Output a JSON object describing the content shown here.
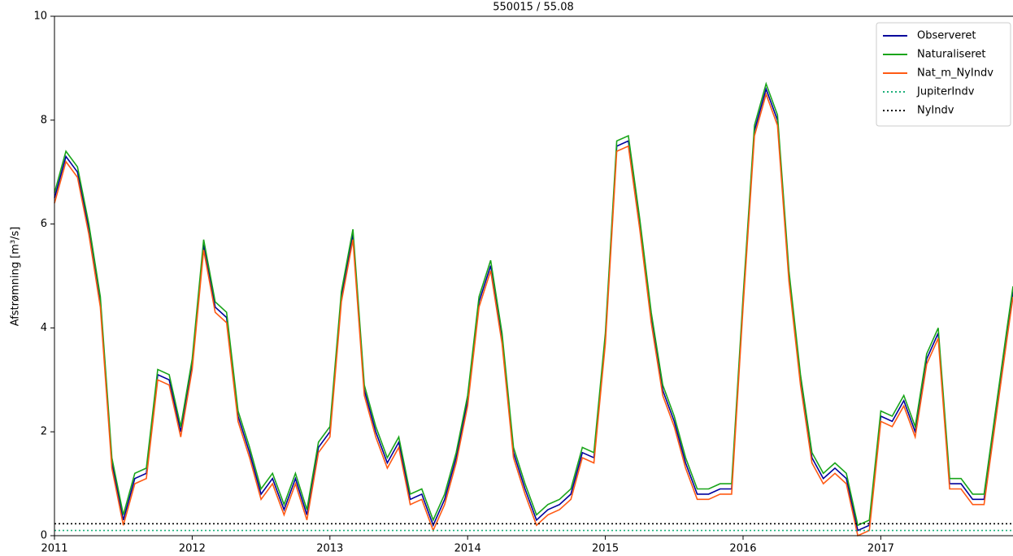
{
  "chart_data": {
    "type": "line",
    "title": "550015 / 55.08",
    "ylabel": "Afstrømning [m³/s]",
    "x": [
      2011.0,
      2011.083,
      2011.167,
      2011.25,
      2011.333,
      2011.417,
      2011.5,
      2011.583,
      2011.667,
      2011.75,
      2011.833,
      2011.917,
      2012.0,
      2012.083,
      2012.167,
      2012.25,
      2012.333,
      2012.417,
      2012.5,
      2012.583,
      2012.667,
      2012.75,
      2012.833,
      2012.917,
      2013.0,
      2013.083,
      2013.167,
      2013.25,
      2013.333,
      2013.417,
      2013.5,
      2013.583,
      2013.667,
      2013.75,
      2013.833,
      2013.917,
      2014.0,
      2014.083,
      2014.167,
      2014.25,
      2014.333,
      2014.417,
      2014.5,
      2014.583,
      2014.667,
      2014.75,
      2014.833,
      2014.917,
      2015.0,
      2015.083,
      2015.167,
      2015.25,
      2015.333,
      2015.417,
      2015.5,
      2015.583,
      2015.667,
      2015.75,
      2015.833,
      2015.917,
      2016.0,
      2016.083,
      2016.167,
      2016.25,
      2016.333,
      2016.417,
      2016.5,
      2016.583,
      2016.667,
      2016.75,
      2016.833,
      2016.917,
      2017.0,
      2017.083,
      2017.167,
      2017.25,
      2017.333,
      2017.417,
      2017.5,
      2017.583,
      2017.667,
      2017.75,
      2017.833,
      2017.917,
      2017.96
    ],
    "series": [
      {
        "name": "Observeret",
        "color": "#00009c",
        "linestyle": "solid",
        "values": [
          6.5,
          7.3,
          7.0,
          5.9,
          4.5,
          1.4,
          0.3,
          1.1,
          1.2,
          3.1,
          3.0,
          2.0,
          3.3,
          5.6,
          4.4,
          4.2,
          2.3,
          1.6,
          0.8,
          1.1,
          0.5,
          1.1,
          0.4,
          1.7,
          2.0,
          4.6,
          5.8,
          2.8,
          2.0,
          1.4,
          1.8,
          0.7,
          0.8,
          0.2,
          0.7,
          1.5,
          2.6,
          4.5,
          5.2,
          3.8,
          1.6,
          0.9,
          0.3,
          0.5,
          0.6,
          0.8,
          1.6,
          1.5,
          3.8,
          7.5,
          7.6,
          6.0,
          4.2,
          2.8,
          2.2,
          1.4,
          0.8,
          0.8,
          0.9,
          0.9,
          4.5,
          7.8,
          8.6,
          8.0,
          5.0,
          3.0,
          1.5,
          1.1,
          1.3,
          1.1,
          0.1,
          0.2,
          2.3,
          2.2,
          2.6,
          2.0,
          3.4,
          3.9,
          1.0,
          1.0,
          0.7,
          0.7,
          2.3,
          3.9,
          4.7
        ]
      },
      {
        "name": "Naturaliseret",
        "color": "#1aa51a",
        "linestyle": "solid",
        "values": [
          6.6,
          7.4,
          7.1,
          6.0,
          4.6,
          1.5,
          0.4,
          1.2,
          1.3,
          3.2,
          3.1,
          2.1,
          3.4,
          5.7,
          4.5,
          4.3,
          2.4,
          1.7,
          0.9,
          1.2,
          0.6,
          1.2,
          0.5,
          1.8,
          2.1,
          4.7,
          5.9,
          2.9,
          2.1,
          1.5,
          1.9,
          0.8,
          0.9,
          0.3,
          0.8,
          1.6,
          2.7,
          4.6,
          5.3,
          3.9,
          1.7,
          1.0,
          0.4,
          0.6,
          0.7,
          0.9,
          1.7,
          1.6,
          3.9,
          7.6,
          7.7,
          6.1,
          4.3,
          2.9,
          2.3,
          1.5,
          0.9,
          0.9,
          1.0,
          1.0,
          4.6,
          7.9,
          8.7,
          8.1,
          5.1,
          3.1,
          1.6,
          1.2,
          1.4,
          1.2,
          0.2,
          0.3,
          2.4,
          2.3,
          2.7,
          2.1,
          3.5,
          4.0,
          1.1,
          1.1,
          0.8,
          0.8,
          2.4,
          4.0,
          4.8
        ]
      },
      {
        "name": "Nat_m_NyIndv",
        "color": "#ff5a14",
        "linestyle": "solid",
        "values": [
          6.4,
          7.2,
          6.9,
          5.8,
          4.4,
          1.3,
          0.2,
          1.0,
          1.1,
          3.0,
          2.9,
          1.9,
          3.2,
          5.5,
          4.3,
          4.1,
          2.2,
          1.5,
          0.7,
          1.0,
          0.4,
          1.0,
          0.3,
          1.6,
          1.9,
          4.5,
          5.7,
          2.7,
          1.9,
          1.3,
          1.7,
          0.6,
          0.7,
          0.1,
          0.6,
          1.4,
          2.5,
          4.4,
          5.1,
          3.7,
          1.5,
          0.8,
          0.2,
          0.4,
          0.5,
          0.7,
          1.5,
          1.4,
          3.7,
          7.4,
          7.5,
          5.9,
          4.1,
          2.7,
          2.1,
          1.3,
          0.7,
          0.7,
          0.8,
          0.8,
          4.4,
          7.7,
          8.5,
          7.9,
          4.9,
          2.9,
          1.4,
          1.0,
          1.2,
          1.0,
          0.0,
          0.1,
          2.2,
          2.1,
          2.5,
          1.9,
          3.3,
          3.8,
          0.9,
          0.9,
          0.6,
          0.6,
          2.2,
          3.8,
          4.6
        ]
      },
      {
        "name": "JupiterIndv",
        "color": "#1db07a",
        "linestyle": "dotted",
        "x": [
          2011.0,
          2017.96
        ],
        "values": [
          0.1,
          0.1
        ]
      },
      {
        "name": "NyIndv",
        "color": "#000000",
        "linestyle": "dotted",
        "x": [
          2011.0,
          2017.96
        ],
        "values": [
          0.23,
          0.23
        ]
      }
    ],
    "xlim": [
      2011.0,
      2017.96
    ],
    "xticks": [
      2011,
      2012,
      2013,
      2014,
      2015,
      2016,
      2017
    ],
    "ylim": [
      0,
      10
    ],
    "yticks": [
      0,
      2,
      4,
      6,
      8,
      10
    ],
    "legend": "upper right"
  }
}
